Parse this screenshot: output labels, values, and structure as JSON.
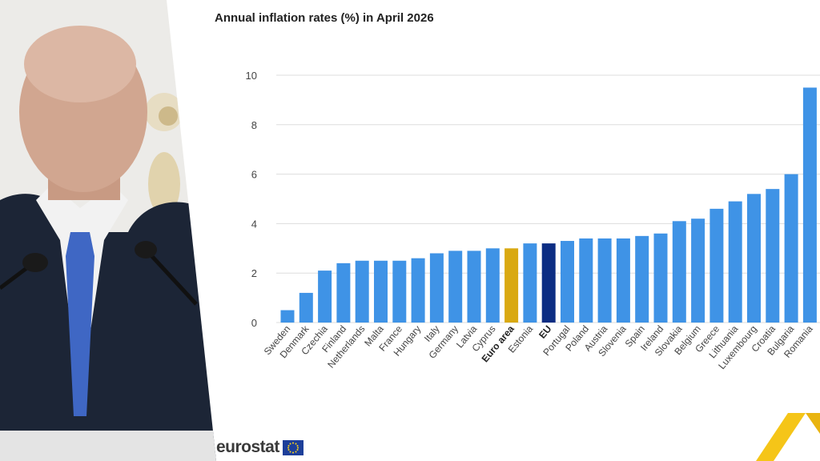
{
  "title": "Annual inflation rates (%) in April 2026",
  "logo_text": "eurostat",
  "colors": {
    "bar_default": "#3f93e6",
    "bar_euro_area": "#d9a912",
    "bar_eu": "#0c2d83",
    "grid": "#dddddd",
    "accent_yellow": "#f5c518"
  },
  "chart_data": {
    "type": "bar",
    "title": "Annual inflation rates (%) in April 2026",
    "xlabel": "",
    "ylabel": "",
    "ylim": [
      0,
      10
    ],
    "yticks": [
      0,
      2,
      4,
      6,
      8,
      10
    ],
    "grid": true,
    "categories": [
      "Sweden",
      "Denmark",
      "Czechia",
      "Finland",
      "Netherlands",
      "Malta",
      "France",
      "Hungary",
      "Italy",
      "Germany",
      "Latvia",
      "Cyprus",
      "Euro area",
      "Estonia",
      "EU",
      "Portugal",
      "Poland",
      "Austria",
      "Slovenia",
      "Spain",
      "Ireland",
      "Slovakia",
      "Belgium",
      "Greece",
      "Lithuania",
      "Luxembourg",
      "Croatia",
      "Bulgaria",
      "Romania"
    ],
    "values": [
      0.5,
      1.2,
      2.1,
      2.4,
      2.5,
      2.5,
      2.5,
      2.6,
      2.8,
      2.9,
      2.9,
      3.0,
      3.0,
      3.2,
      3.2,
      3.3,
      3.4,
      3.4,
      3.4,
      3.5,
      3.6,
      4.1,
      4.2,
      4.6,
      4.9,
      5.2,
      5.4,
      6.0,
      9.5
    ],
    "highlight": {
      "Euro area": "euro_area",
      "EU": "eu"
    }
  }
}
